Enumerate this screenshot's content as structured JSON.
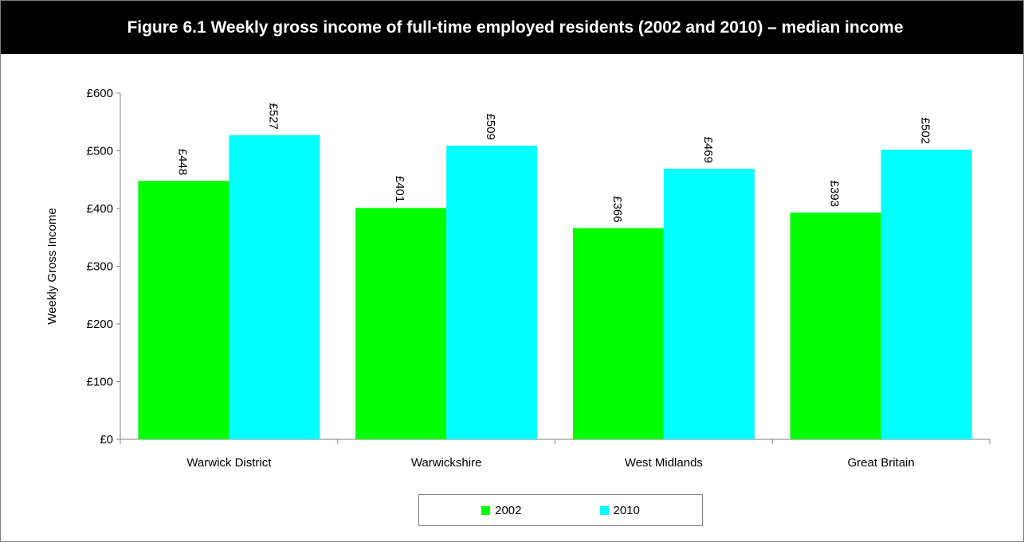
{
  "title": "Figure 6.1 Weekly gross income of full-time employed residents (2002 and 2010) – median income",
  "chart_data": {
    "type": "bar",
    "title": "Figure 6.1 Weekly gross income of full-time employed residents (2002 and 2010) – median income",
    "xlabel": "",
    "ylabel": "Weekly Gross Income",
    "ylim": [
      0,
      600
    ],
    "yticks": [
      0,
      100,
      200,
      300,
      400,
      500,
      600
    ],
    "ytick_labels": [
      "£0",
      "£100",
      "£200",
      "£300",
      "£400",
      "£500",
      "£600"
    ],
    "categories": [
      "Warwick District",
      "Warwickshire",
      "West Midlands",
      "Great Britain"
    ],
    "series": [
      {
        "name": "2002",
        "color": "#00ff00",
        "values": [
          448,
          401,
          366,
          393
        ],
        "labels": [
          "£448",
          "£401",
          "£366",
          "£393"
        ]
      },
      {
        "name": "2010",
        "color": "#00ffff",
        "values": [
          527,
          509,
          469,
          502
        ],
        "labels": [
          "£527",
          "£509",
          "£469",
          "£502"
        ]
      }
    ],
    "grid": false,
    "legend_position": "bottom"
  }
}
